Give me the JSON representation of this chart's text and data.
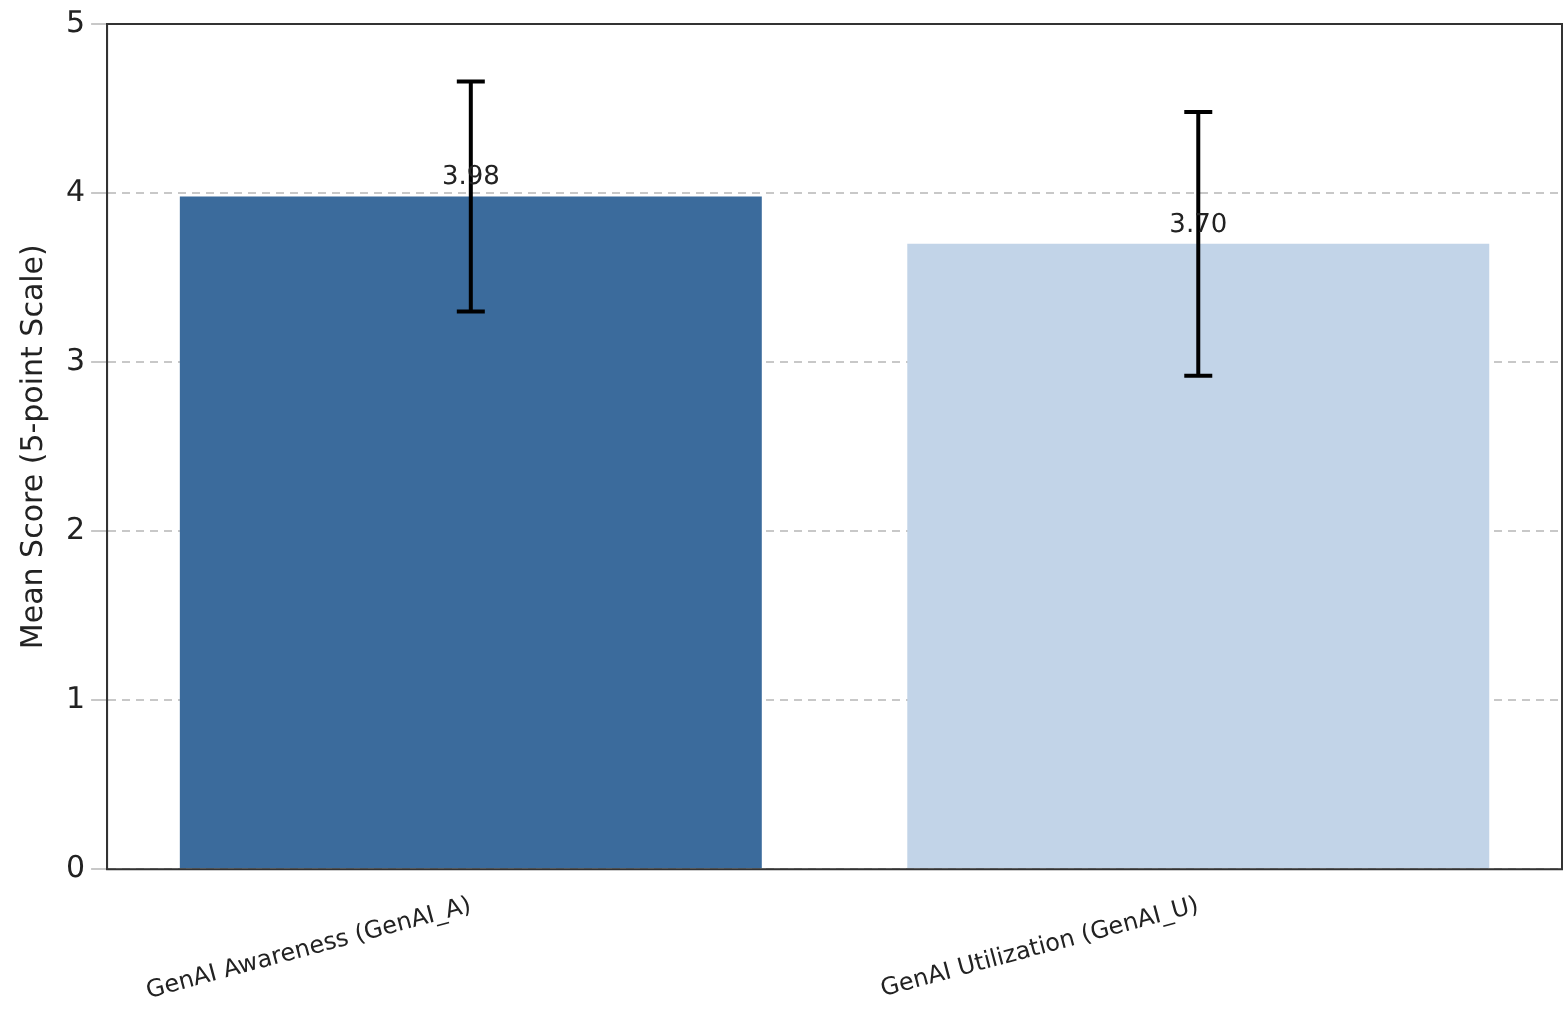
{
  "chart_data": {
    "type": "bar",
    "ylabel": "Mean Score (5-point Scale)",
    "categories": [
      "GenAI Awareness (GenAI_A)",
      "GenAI Utilization (GenAI_U)"
    ],
    "values": [
      3.98,
      3.7
    ],
    "colors": [
      "#3b6b9c",
      "#c2d4e8"
    ],
    "errors": [
      0.68,
      0.78
    ],
    "value_labels": [
      "3.98",
      "3.70"
    ],
    "ylim": [
      0,
      5
    ],
    "yticks": [
      0,
      1,
      2,
      3,
      4,
      5
    ],
    "grid": "y",
    "legend": false
  }
}
